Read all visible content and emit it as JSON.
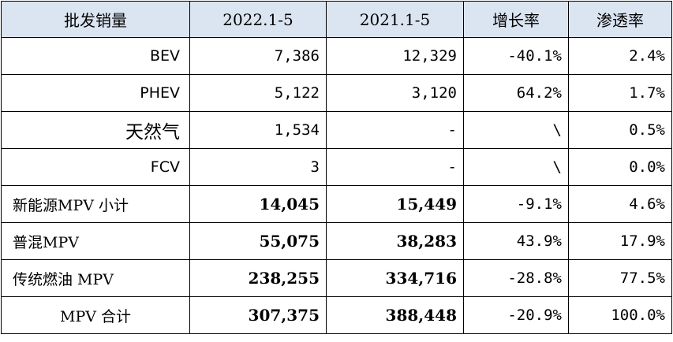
{
  "table": {
    "headers": [
      "批发销量",
      "2022.1-5",
      "2021.1-5",
      "增长率",
      "渗透率"
    ],
    "rows": [
      {
        "label": "BEV",
        "v2022": "7,386",
        "v2021": "12,329",
        "growth": "-40.1%",
        "penetration": "2.4%"
      },
      {
        "label": "PHEV",
        "v2022": "5,122",
        "v2021": "3,120",
        "growth": "64.2%",
        "penetration": "1.7%"
      },
      {
        "label": "天然气",
        "v2022": "1,534",
        "v2021": "-",
        "growth": "\\",
        "penetration": "0.5%"
      },
      {
        "label": "FCV",
        "v2022": "3",
        "v2021": "-",
        "growth": "\\",
        "penetration": "0.0%"
      },
      {
        "label": "新能源MPV 小计",
        "v2022": "14,045",
        "v2021": "15,449",
        "growth": "-9.1%",
        "penetration": "4.6%"
      },
      {
        "label": "普混MPV",
        "v2022": "55,075",
        "v2021": "38,283",
        "growth": "43.9%",
        "penetration": "17.9%"
      },
      {
        "label": "传统燃油 MPV",
        "v2022": "238,255",
        "v2021": "334,716",
        "growth": "-28.8%",
        "penetration": "77.5%"
      },
      {
        "label": "MPV 合计",
        "v2022": "307,375",
        "v2021": "388,448",
        "growth": "-20.9%",
        "penetration": "100.0%"
      }
    ]
  },
  "colors": {
    "header_bg": "#dbe5f1",
    "border": "#000000"
  }
}
